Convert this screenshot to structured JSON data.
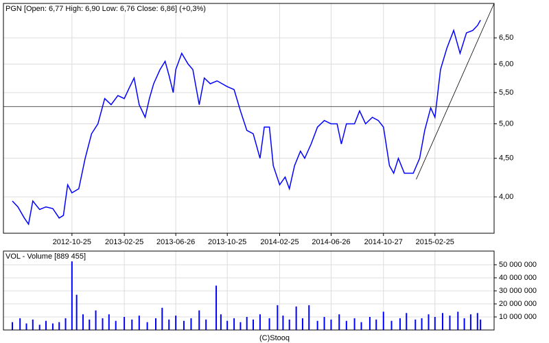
{
  "chart_data": [
    {
      "type": "line",
      "title": "PGN [Open: 6,77  High: 6,90  Low: 6,76  Close: 6,86] (+0,3%)",
      "color": "#0000ff",
      "log_scale": true,
      "grid": true,
      "xlim": [
        "2012-05-17",
        "2015-07-14"
      ],
      "xticks": [
        "2012-10-25",
        "2013-02-25",
        "2013-06-26",
        "2013-10-25",
        "2014-02-25",
        "2014-06-26",
        "2014-10-27",
        "2015-02-25"
      ],
      "ylim": [
        3.58,
        7.22
      ],
      "yticks": [
        {
          "value": 4,
          "label": "4,00"
        },
        {
          "value": 4.5,
          "label": "4,50"
        },
        {
          "value": 5,
          "label": "5,00"
        },
        {
          "value": 5.5,
          "label": "5,50"
        },
        {
          "value": 6,
          "label": "6,00"
        },
        {
          "value": 6.5,
          "label": "6,50"
        }
      ],
      "reference_line": 5.27,
      "trend_line": {
        "x": [
          "2015-01-12",
          "2015-07-14"
        ],
        "values": [
          4.22,
          7.22
        ]
      },
      "x": [
        "2012-06-07",
        "2012-06-20",
        "2012-07-05",
        "2012-07-15",
        "2012-07-25",
        "2012-08-10",
        "2012-08-25",
        "2012-09-10",
        "2012-09-25",
        "2012-10-05",
        "2012-10-15",
        "2012-10-25",
        "2012-11-10",
        "2012-11-25",
        "2012-12-10",
        "2012-12-25",
        "2013-01-10",
        "2013-01-25",
        "2013-02-10",
        "2013-02-25",
        "2013-03-10",
        "2013-03-20",
        "2013-04-01",
        "2013-04-15",
        "2013-04-25",
        "2013-05-05",
        "2013-05-20",
        "2013-06-01",
        "2013-06-10",
        "2013-06-20",
        "2013-06-26",
        "2013-07-10",
        "2013-07-25",
        "2013-08-05",
        "2013-08-20",
        "2013-09-01",
        "2013-09-15",
        "2013-10-01",
        "2013-10-25",
        "2013-11-10",
        "2013-11-25",
        "2013-12-10",
        "2013-12-25",
        "2014-01-10",
        "2014-01-20",
        "2014-02-01",
        "2014-02-10",
        "2014-02-25",
        "2014-03-10",
        "2014-03-20",
        "2014-04-01",
        "2014-04-15",
        "2014-04-25",
        "2014-05-10",
        "2014-05-25",
        "2014-06-10",
        "2014-06-26",
        "2014-07-10",
        "2014-07-20",
        "2014-08-01",
        "2014-08-20",
        "2014-09-01",
        "2014-09-15",
        "2014-10-01",
        "2014-10-15",
        "2014-10-27",
        "2014-11-10",
        "2014-11-20",
        "2014-12-01",
        "2014-12-15",
        "2015-01-05",
        "2015-01-20",
        "2015-02-01",
        "2015-02-15",
        "2015-02-25",
        "2015-03-10",
        "2015-03-25",
        "2015-04-10",
        "2015-04-25",
        "2015-05-10",
        "2015-05-25",
        "2015-06-05",
        "2015-06-12"
      ],
      "values": [
        3.95,
        3.88,
        3.75,
        3.68,
        3.95,
        3.85,
        3.88,
        3.86,
        3.75,
        3.78,
        4.15,
        4.05,
        4.1,
        4.5,
        4.85,
        5.0,
        5.4,
        5.3,
        5.45,
        5.4,
        5.6,
        5.75,
        5.3,
        5.1,
        5.4,
        5.65,
        5.9,
        6.05,
        5.8,
        5.5,
        5.9,
        6.2,
        6.0,
        5.9,
        5.3,
        5.75,
        5.65,
        5.7,
        5.6,
        5.55,
        5.2,
        4.9,
        4.85,
        4.5,
        4.95,
        4.95,
        4.4,
        4.15,
        4.25,
        4.1,
        4.4,
        4.6,
        4.5,
        4.7,
        4.95,
        5.05,
        5.0,
        5.0,
        4.7,
        5.0,
        5.0,
        5.2,
        5.0,
        5.1,
        5.05,
        4.95,
        4.4,
        4.3,
        4.5,
        4.3,
        4.3,
        4.5,
        4.9,
        5.25,
        5.1,
        5.9,
        6.3,
        6.65,
        6.2,
        6.6,
        6.65,
        6.75,
        6.86
      ]
    },
    {
      "type": "bar",
      "title": "VOL - Volume [889 455]",
      "color": "#0000ff",
      "grid": true,
      "xlim": [
        "2012-05-17",
        "2015-07-14"
      ],
      "ylim": [
        0,
        60500000
      ],
      "yticks": [
        {
          "value": 10000000,
          "label": "10 000 000"
        },
        {
          "value": 20000000,
          "label": "20 000 000"
        },
        {
          "value": 30000000,
          "label": "30 000 000"
        },
        {
          "value": 40000000,
          "label": "40 000 000"
        },
        {
          "value": 50000000,
          "label": "50 000 000"
        }
      ],
      "x": [
        "2012-06-07",
        "2012-06-25",
        "2012-07-10",
        "2012-07-25",
        "2012-08-10",
        "2012-08-25",
        "2012-09-10",
        "2012-09-25",
        "2012-10-10",
        "2012-10-25",
        "2012-11-05",
        "2012-11-20",
        "2012-12-05",
        "2012-12-20",
        "2013-01-05",
        "2013-01-20",
        "2013-02-05",
        "2013-02-25",
        "2013-03-15",
        "2013-04-01",
        "2013-04-20",
        "2013-05-10",
        "2013-05-25",
        "2013-06-10",
        "2013-06-26",
        "2013-07-15",
        "2013-08-01",
        "2013-08-20",
        "2013-09-05",
        "2013-09-29",
        "2013-10-10",
        "2013-10-25",
        "2013-11-10",
        "2013-11-25",
        "2013-12-10",
        "2013-12-25",
        "2014-01-10",
        "2014-02-01",
        "2014-02-20",
        "2014-03-05",
        "2014-03-20",
        "2014-04-05",
        "2014-04-20",
        "2014-05-05",
        "2014-05-25",
        "2014-06-10",
        "2014-06-26",
        "2014-07-15",
        "2014-08-01",
        "2014-08-20",
        "2014-09-05",
        "2014-09-25",
        "2014-10-10",
        "2014-10-27",
        "2014-11-15",
        "2014-12-05",
        "2014-12-20",
        "2015-01-10",
        "2015-01-25",
        "2015-02-10",
        "2015-02-25",
        "2015-03-15",
        "2015-04-01",
        "2015-04-20",
        "2015-05-05",
        "2015-05-20",
        "2015-06-05",
        "2015-06-12"
      ],
      "values": [
        6000000,
        9000000,
        5000000,
        8000000,
        4000000,
        7000000,
        5000000,
        6000000,
        9000000,
        54000000,
        27000000,
        12000000,
        8000000,
        15000000,
        9000000,
        12000000,
        7000000,
        10000000,
        8000000,
        11000000,
        6000000,
        9000000,
        17000000,
        8000000,
        11000000,
        7000000,
        9000000,
        15000000,
        8000000,
        34000000,
        12000000,
        7000000,
        9000000,
        6000000,
        10000000,
        8000000,
        12000000,
        9000000,
        19000000,
        11000000,
        8000000,
        18000000,
        9000000,
        19000000,
        7000000,
        10000000,
        8000000,
        12000000,
        7000000,
        9000000,
        6000000,
        10000000,
        8000000,
        14000000,
        7000000,
        9000000,
        13000000,
        8000000,
        9000000,
        12000000,
        10000000,
        13000000,
        11000000,
        14000000,
        9000000,
        12000000,
        13000000,
        8000000
      ]
    }
  ],
  "footer": "(C)Stooq"
}
